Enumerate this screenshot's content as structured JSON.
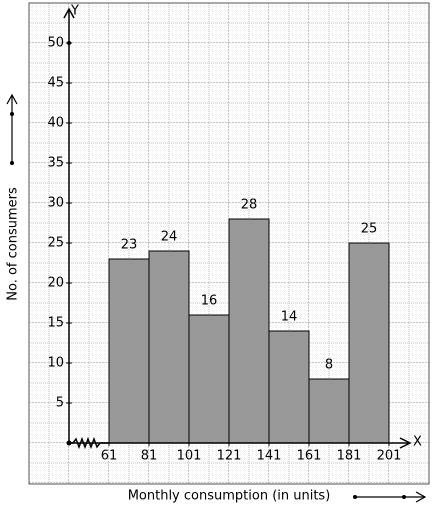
{
  "chart_data": {
    "type": "histogram",
    "x_label": "Monthly consumption (in units)",
    "y_label": "No. of consumers",
    "x_axis_name": "X",
    "y_axis_name": "Y",
    "bins": [
      61,
      81,
      101,
      121,
      141,
      161,
      181,
      201
    ],
    "values": [
      23,
      24,
      16,
      28,
      14,
      8,
      25
    ],
    "color": "#999999",
    "xlim": [
      61,
      201
    ],
    "ylim": [
      0,
      50
    ],
    "xticks": [
      61,
      81,
      101,
      121,
      141,
      161,
      181,
      201
    ],
    "yticks": [
      5,
      10,
      15,
      20,
      25,
      30,
      35,
      40,
      45,
      50
    ]
  }
}
